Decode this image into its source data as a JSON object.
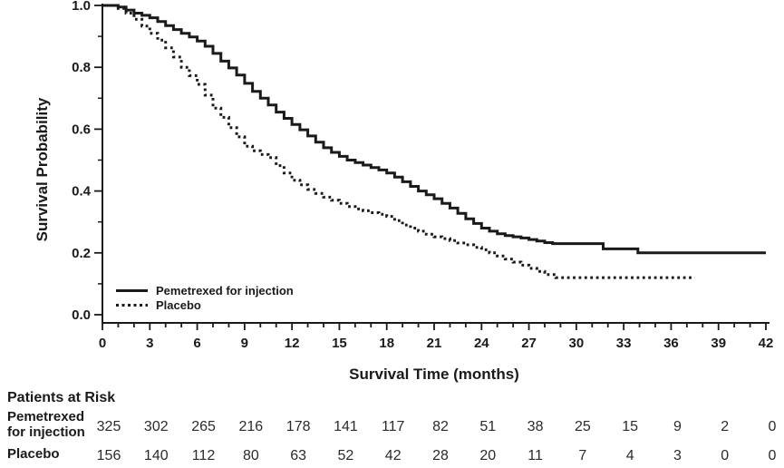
{
  "chart_data": {
    "type": "line",
    "subtype": "kaplan-meier-step",
    "title": "",
    "xlabel": "Survival Time (months)",
    "ylabel": "Survival Probability",
    "xlim": [
      0,
      42
    ],
    "ylim": [
      0.0,
      1.0
    ],
    "x_major_ticks": [
      0,
      3,
      6,
      9,
      12,
      15,
      18,
      21,
      24,
      27,
      30,
      33,
      36,
      39,
      42
    ],
    "x_minor_step": 1,
    "y_major_ticks": [
      1.0,
      0.8,
      0.6,
      0.4,
      0.2,
      0.0
    ],
    "y_minor_step": 0.1,
    "grid": false,
    "legend_position": "inside-lower-left",
    "line_color": "#1a1a1a",
    "series": [
      {
        "name": "Pemetrexed for injection",
        "line": "solid",
        "points": [
          [
            0,
            1.0
          ],
          [
            0.8,
            1.0
          ],
          [
            1,
            0.995
          ],
          [
            1.5,
            0.985
          ],
          [
            2,
            0.975
          ],
          [
            2.5,
            0.968
          ],
          [
            3,
            0.96
          ],
          [
            3.5,
            0.948
          ],
          [
            4,
            0.935
          ],
          [
            4.5,
            0.922
          ],
          [
            5,
            0.91
          ],
          [
            5.5,
            0.898
          ],
          [
            6,
            0.885
          ],
          [
            6.5,
            0.868
          ],
          [
            7,
            0.845
          ],
          [
            7.5,
            0.82
          ],
          [
            8,
            0.798
          ],
          [
            8.5,
            0.775
          ],
          [
            9,
            0.748
          ],
          [
            9.5,
            0.722
          ],
          [
            10,
            0.7
          ],
          [
            10.5,
            0.678
          ],
          [
            11,
            0.655
          ],
          [
            11.5,
            0.635
          ],
          [
            12,
            0.615
          ],
          [
            12.5,
            0.598
          ],
          [
            13,
            0.578
          ],
          [
            13.5,
            0.558
          ],
          [
            14,
            0.54
          ],
          [
            14.5,
            0.525
          ],
          [
            15,
            0.512
          ],
          [
            15.5,
            0.5
          ],
          [
            16,
            0.492
          ],
          [
            16.5,
            0.484
          ],
          [
            17,
            0.476
          ],
          [
            17.5,
            0.468
          ],
          [
            18,
            0.458
          ],
          [
            18.5,
            0.445
          ],
          [
            19,
            0.43
          ],
          [
            19.5,
            0.415
          ],
          [
            20,
            0.4
          ],
          [
            20.5,
            0.388
          ],
          [
            21,
            0.375
          ],
          [
            21.5,
            0.36
          ],
          [
            22,
            0.345
          ],
          [
            22.5,
            0.328
          ],
          [
            23,
            0.31
          ],
          [
            23.5,
            0.295
          ],
          [
            24,
            0.28
          ],
          [
            24.5,
            0.27
          ],
          [
            25,
            0.262
          ],
          [
            25.5,
            0.256
          ],
          [
            26,
            0.252
          ],
          [
            26.5,
            0.248
          ],
          [
            27,
            0.243
          ],
          [
            27.5,
            0.238
          ],
          [
            28,
            0.233
          ],
          [
            28.5,
            0.23
          ],
          [
            31.7,
            0.213
          ],
          [
            33.9,
            0.2
          ],
          [
            42,
            0.2
          ]
        ]
      },
      {
        "name": "Placebo",
        "line": "dotted",
        "points": [
          [
            0,
            1.0
          ],
          [
            0.7,
            1.0
          ],
          [
            1,
            0.99
          ],
          [
            1.5,
            0.975
          ],
          [
            2,
            0.955
          ],
          [
            2.5,
            0.933
          ],
          [
            3,
            0.91
          ],
          [
            3.5,
            0.888
          ],
          [
            4,
            0.863
          ],
          [
            4.5,
            0.833
          ],
          [
            5,
            0.8
          ],
          [
            5.5,
            0.773
          ],
          [
            6,
            0.745
          ],
          [
            6.5,
            0.71
          ],
          [
            7,
            0.668
          ],
          [
            7.5,
            0.638
          ],
          [
            8,
            0.605
          ],
          [
            8.5,
            0.575
          ],
          [
            9,
            0.545
          ],
          [
            9.5,
            0.53
          ],
          [
            10,
            0.518
          ],
          [
            10.5,
            0.508
          ],
          [
            11,
            0.482
          ],
          [
            11.5,
            0.458
          ],
          [
            12,
            0.435
          ],
          [
            12.5,
            0.42
          ],
          [
            13,
            0.405
          ],
          [
            13.5,
            0.392
          ],
          [
            14,
            0.38
          ],
          [
            14.5,
            0.37
          ],
          [
            15,
            0.36
          ],
          [
            15.5,
            0.35
          ],
          [
            16,
            0.342
          ],
          [
            16.5,
            0.336
          ],
          [
            17,
            0.33
          ],
          [
            17.5,
            0.325
          ],
          [
            18,
            0.318
          ],
          [
            18.5,
            0.304
          ],
          [
            19,
            0.29
          ],
          [
            19.5,
            0.28
          ],
          [
            20,
            0.27
          ],
          [
            20.5,
            0.26
          ],
          [
            21,
            0.252
          ],
          [
            21.5,
            0.246
          ],
          [
            22,
            0.24
          ],
          [
            22.5,
            0.232
          ],
          [
            23,
            0.226
          ],
          [
            23.5,
            0.218
          ],
          [
            24,
            0.21
          ],
          [
            24.5,
            0.2
          ],
          [
            25,
            0.19
          ],
          [
            25.5,
            0.18
          ],
          [
            26,
            0.17
          ],
          [
            26.5,
            0.16
          ],
          [
            27,
            0.15
          ],
          [
            27.5,
            0.14
          ],
          [
            28,
            0.13
          ],
          [
            28.7,
            0.12
          ],
          [
            37.5,
            0.12
          ]
        ]
      }
    ]
  },
  "legend": [
    {
      "label": "Pemetrexed for injection",
      "style": "solid"
    },
    {
      "label": "Placebo",
      "style": "dotted"
    }
  ],
  "risk_table": {
    "title": "Patients at Risk",
    "times": [
      0,
      3,
      6,
      9,
      12,
      15,
      18,
      21,
      24,
      27,
      30,
      33,
      36,
      39,
      42
    ],
    "rows": [
      {
        "label": "Pemetrexed\nfor injection",
        "counts": [
          325,
          302,
          265,
          216,
          178,
          141,
          117,
          82,
          51,
          38,
          25,
          15,
          9,
          2,
          0
        ]
      },
      {
        "label": "Placebo",
        "counts": [
          156,
          140,
          112,
          80,
          63,
          52,
          42,
          28,
          20,
          11,
          7,
          4,
          3,
          0,
          0
        ]
      }
    ]
  }
}
